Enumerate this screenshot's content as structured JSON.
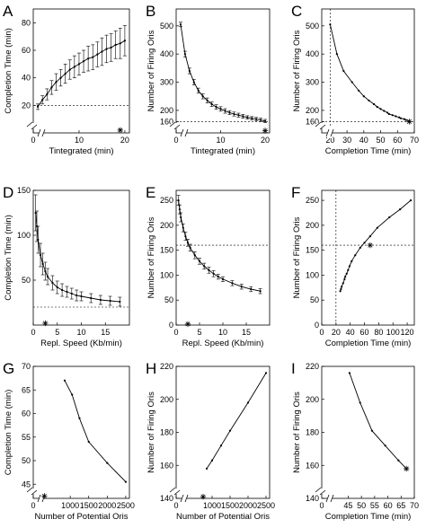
{
  "chart_data": [
    {
      "letter": "A",
      "type": "line",
      "xlabel": "Tintegrated (min)",
      "ylabel": "Completion Time (min)",
      "xlim": [
        0,
        21
      ],
      "ylim": [
        0,
        90
      ],
      "axis_break": true,
      "xticks": [
        0,
        10,
        20
      ],
      "xtick_labels": [
        "0",
        "10",
        "20"
      ],
      "yticks": [
        20,
        40,
        60,
        80
      ],
      "ytick_labels": [
        "20",
        "40",
        "60",
        "80"
      ],
      "x": [
        1,
        2,
        3,
        4,
        5,
        6,
        7,
        8,
        9,
        10,
        11,
        12,
        13,
        14,
        15,
        16,
        17,
        18,
        19,
        20
      ],
      "y": [
        19,
        24,
        28,
        33,
        37,
        40,
        43,
        46,
        48,
        50,
        52,
        54,
        55,
        57,
        59,
        61,
        62,
        64,
        65,
        67
      ],
      "err": [
        2,
        3,
        4,
        5,
        6,
        6,
        7,
        7,
        8,
        8,
        8,
        9,
        9,
        9,
        10,
        10,
        10,
        10,
        11,
        11
      ],
      "hline": 20,
      "star": {
        "x": 19,
        "y": 2
      }
    },
    {
      "letter": "B",
      "type": "line",
      "xlabel": "Tintegrated (min)",
      "ylabel": "Number of Firing Oris",
      "xlim": [
        0,
        21
      ],
      "ylim": [
        120,
        560
      ],
      "axis_break": true,
      "xticks": [
        0,
        10,
        20
      ],
      "xtick_labels": [
        "0",
        "10",
        "20"
      ],
      "yticks": [
        160,
        200,
        300,
        400,
        500
      ],
      "ytick_labels": [
        "160",
        "200",
        "300",
        "400",
        "500"
      ],
      "x": [
        1,
        2,
        3,
        4,
        5,
        6,
        7,
        8,
        9,
        10,
        11,
        12,
        13,
        14,
        15,
        16,
        17,
        18,
        19,
        20
      ],
      "y": [
        505,
        400,
        340,
        300,
        270,
        250,
        235,
        222,
        212,
        205,
        198,
        192,
        187,
        183,
        179,
        175,
        172,
        169,
        166,
        162
      ],
      "err": [
        8,
        10,
        10,
        10,
        9,
        9,
        9,
        8,
        8,
        8,
        8,
        7,
        7,
        7,
        7,
        6,
        6,
        6,
        6,
        6
      ],
      "hline": 160,
      "star": {
        "x": 20,
        "y": 128
      }
    },
    {
      "letter": "C",
      "type": "line",
      "xlabel": "Completion Time (min)",
      "ylabel": "Number of Firing Oris",
      "xlim": [
        15,
        70
      ],
      "ylim": [
        120,
        560
      ],
      "axis_break": true,
      "xticks": [
        20,
        30,
        40,
        50,
        60,
        70
      ],
      "xtick_labels": [
        "20",
        "30",
        "40",
        "50",
        "60",
        "70"
      ],
      "yticks": [
        160,
        200,
        300,
        400,
        500
      ],
      "ytick_labels": [
        "160",
        "200",
        "300",
        "400",
        "500"
      ],
      "x": [
        20,
        24,
        28,
        33,
        37,
        40,
        43,
        46,
        48,
        50,
        52,
        54,
        55,
        57,
        59,
        61,
        62,
        64,
        65,
        67
      ],
      "y": [
        505,
        400,
        340,
        300,
        270,
        250,
        235,
        222,
        212,
        205,
        198,
        192,
        187,
        183,
        179,
        175,
        172,
        169,
        166,
        162
      ],
      "hline": 160,
      "vline": 20,
      "star": {
        "x": 67,
        "y": 160
      }
    },
    {
      "letter": "D",
      "type": "line",
      "xlabel": "Repl. Speed (Kb/min)",
      "ylabel": "Completion Time (min)",
      "xlim": [
        0,
        20
      ],
      "ylim": [
        0,
        150
      ],
      "axis_break": false,
      "xticks": [
        0,
        5,
        10,
        15
      ],
      "xtick_labels": [
        "0",
        "5",
        "10",
        "15"
      ],
      "yticks": [
        50,
        100,
        150
      ],
      "ytick_labels": [
        "50",
        "100",
        "150"
      ],
      "x": [
        0.5,
        0.75,
        1,
        1.5,
        2,
        2.5,
        3,
        4,
        5,
        6,
        7,
        8,
        9,
        10,
        12,
        14,
        16,
        18
      ],
      "y": [
        125,
        110,
        95,
        78,
        68,
        60,
        54,
        47,
        42,
        39,
        37,
        35,
        33,
        32,
        30,
        28,
        27,
        26
      ],
      "err": [
        20,
        17,
        15,
        13,
        12,
        10,
        9,
        8,
        7,
        7,
        6,
        6,
        6,
        5,
        5,
        5,
        5,
        5
      ],
      "hline": 20,
      "star": {
        "x": 2.5,
        "y": 2
      }
    },
    {
      "letter": "E",
      "type": "line",
      "xlabel": "Repl. Speed (Kb/min)",
      "ylabel": "Number of Firing Oris",
      "xlim": [
        0,
        20
      ],
      "ylim": [
        0,
        270
      ],
      "axis_break": false,
      "xticks": [
        0,
        5,
        10,
        15
      ],
      "xtick_labels": [
        "0",
        "5",
        "10",
        "15"
      ],
      "yticks": [
        0,
        50,
        100,
        150,
        200,
        250
      ],
      "ytick_labels": [
        "0",
        "50",
        "100",
        "150",
        "200",
        "250"
      ],
      "x": [
        0.5,
        0.75,
        1,
        1.5,
        2,
        2.5,
        3,
        4,
        5,
        6,
        7,
        8,
        9,
        10,
        12,
        14,
        16,
        18
      ],
      "y": [
        250,
        232,
        216,
        195,
        178,
        165,
        155,
        140,
        128,
        118,
        110,
        103,
        97,
        92,
        84,
        77,
        72,
        68
      ],
      "err": [
        10,
        9,
        9,
        8,
        8,
        7,
        7,
        7,
        6,
        6,
        6,
        6,
        5,
        5,
        5,
        5,
        5,
        5
      ],
      "hline": 160,
      "star": {
        "x": 2.5,
        "y": 2
      }
    },
    {
      "letter": "F",
      "type": "line",
      "xlabel": "Completion Time (min)",
      "ylabel": "Number of Firing Oris",
      "xlim": [
        0,
        130
      ],
      "ylim": [
        0,
        270
      ],
      "axis_break": false,
      "xticks": [
        0,
        20,
        40,
        60,
        80,
        100,
        120
      ],
      "xtick_labels": [
        "0",
        "20",
        "40",
        "60",
        "80",
        "100",
        "120"
      ],
      "yticks": [
        0,
        50,
        100,
        150,
        200,
        250
      ],
      "ytick_labels": [
        "0",
        "50",
        "100",
        "150",
        "200",
        "250"
      ],
      "x": [
        26,
        27,
        28,
        30,
        32,
        33,
        35,
        37,
        39,
        42,
        47,
        54,
        60,
        68,
        78,
        95,
        110,
        125
      ],
      "y": [
        68,
        72,
        77,
        84,
        92,
        97,
        103,
        110,
        118,
        128,
        140,
        155,
        165,
        178,
        195,
        216,
        232,
        250
      ],
      "hline": 160,
      "vline": 20,
      "star": {
        "x": 68,
        "y": 160
      }
    },
    {
      "letter": "G",
      "type": "line",
      "xlabel": "Number of Potential Oris",
      "ylabel": "Completion Time (min)",
      "xlim": [
        0,
        2600
      ],
      "ylim": [
        42,
        70
      ],
      "axis_break": true,
      "xticks": [
        0,
        1000,
        1500,
        2000,
        2500
      ],
      "xtick_labels": [
        "0",
        "1000",
        "1500",
        "2000",
        "2500"
      ],
      "yticks": [
        45,
        50,
        55,
        60,
        65,
        70
      ],
      "ytick_labels": [
        "45",
        "50",
        "55",
        "60",
        "65",
        "70"
      ],
      "x": [
        850,
        1050,
        1250,
        1500,
        2000,
        2500
      ],
      "y": [
        67,
        64,
        59,
        54,
        49.5,
        45.5
      ],
      "star": {
        "x": 300,
        "y": 42.5
      }
    },
    {
      "letter": "H",
      "type": "line",
      "xlabel": "Number of Potential Oris",
      "ylabel": "Number of Firing Oris",
      "xlim": [
        0,
        2600
      ],
      "ylim": [
        140,
        220
      ],
      "axis_break": true,
      "xticks": [
        0,
        1000,
        1500,
        2000,
        2500
      ],
      "xtick_labels": [
        "0",
        "1000",
        "1500",
        "2000",
        "2500"
      ],
      "yticks": [
        140,
        160,
        180,
        200,
        220
      ],
      "ytick_labels": [
        "140",
        "160",
        "180",
        "200",
        "220"
      ],
      "x": [
        850,
        1000,
        1250,
        1500,
        2000,
        2500
      ],
      "y": [
        158,
        163,
        172,
        181,
        198,
        216
      ],
      "star": {
        "x": 750,
        "y": 141
      }
    },
    {
      "letter": "I",
      "type": "line",
      "xlabel": "Completion Time (min)",
      "ylabel": "Number of Firing Oris",
      "xlim": [
        35,
        70
      ],
      "ylim": [
        140,
        220
      ],
      "axis_break": true,
      "xticks": [
        45,
        50,
        55,
        60,
        65,
        70
      ],
      "xtick_labels": [
        "45",
        "50",
        "55",
        "60",
        "65",
        "70"
      ],
      "yticks": [
        140,
        160,
        180,
        200,
        220
      ],
      "ytick_labels": [
        "140",
        "160",
        "180",
        "200",
        "220"
      ],
      "first_xtick_label": "0",
      "x": [
        45.5,
        49.5,
        54,
        59,
        64,
        67
      ],
      "y": [
        216,
        198,
        181,
        172,
        163,
        158
      ],
      "star": {
        "x": 67,
        "y": 158
      }
    }
  ]
}
